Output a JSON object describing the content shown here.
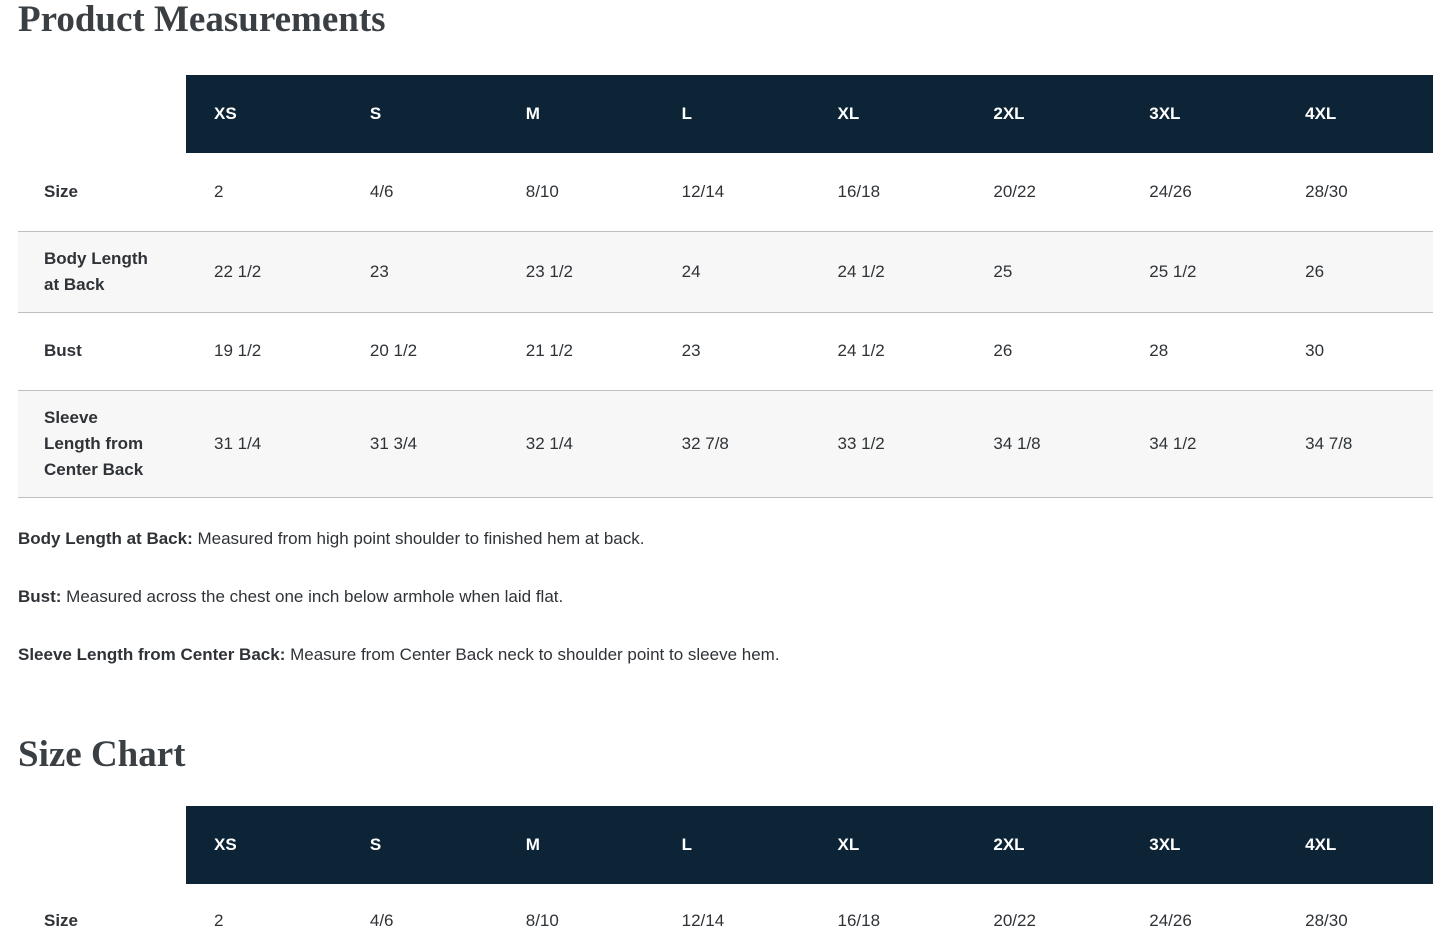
{
  "titles": {
    "measurements": "Product Measurements",
    "size_chart": "Size Chart"
  },
  "size_headers": [
    "XS",
    "S",
    "M",
    "L",
    "XL",
    "2XL",
    "3XL",
    "4XL"
  ],
  "measurements_table": {
    "rows": [
      {
        "label": "Size",
        "values": [
          "2",
          "4/6",
          "8/10",
          "12/14",
          "16/18",
          "20/22",
          "24/26",
          "28/30"
        ]
      },
      {
        "label": "Body Length at Back",
        "values": [
          "22 1/2",
          "23",
          "23 1/2",
          "24",
          "24 1/2",
          "25",
          "25 1/2",
          "26"
        ]
      },
      {
        "label": "Bust",
        "values": [
          "19 1/2",
          "20 1/2",
          "21 1/2",
          "23",
          "24 1/2",
          "26",
          "28",
          "30"
        ]
      },
      {
        "label": "Sleeve Length from Center Back",
        "values": [
          "31 1/4",
          "31 3/4",
          "32 1/4",
          "32 7/8",
          "33 1/2",
          "34 1/8",
          "34 1/2",
          "34 7/8"
        ]
      }
    ]
  },
  "size_chart_table": {
    "rows": [
      {
        "label": "Size",
        "values": [
          "2",
          "4/6",
          "8/10",
          "12/14",
          "16/18",
          "20/22",
          "24/26",
          "28/30"
        ]
      }
    ]
  },
  "definitions": [
    {
      "term": "Body Length at Back:",
      "text": " Measured from high point shoulder to finished hem at back."
    },
    {
      "term": "Bust:",
      "text": " Measured across the chest one inch below armhole when laid flat."
    },
    {
      "term": "Sleeve Length from Center Back:",
      "text": " Measure from Center Back neck to shoulder point to sleeve hem."
    }
  ],
  "colors": {
    "header_bg": "#0d2436",
    "header_text": "#ffffff",
    "stripe_bg": "#f7f7f7",
    "divider": "#c0c0c0",
    "text": "#2f3337"
  }
}
